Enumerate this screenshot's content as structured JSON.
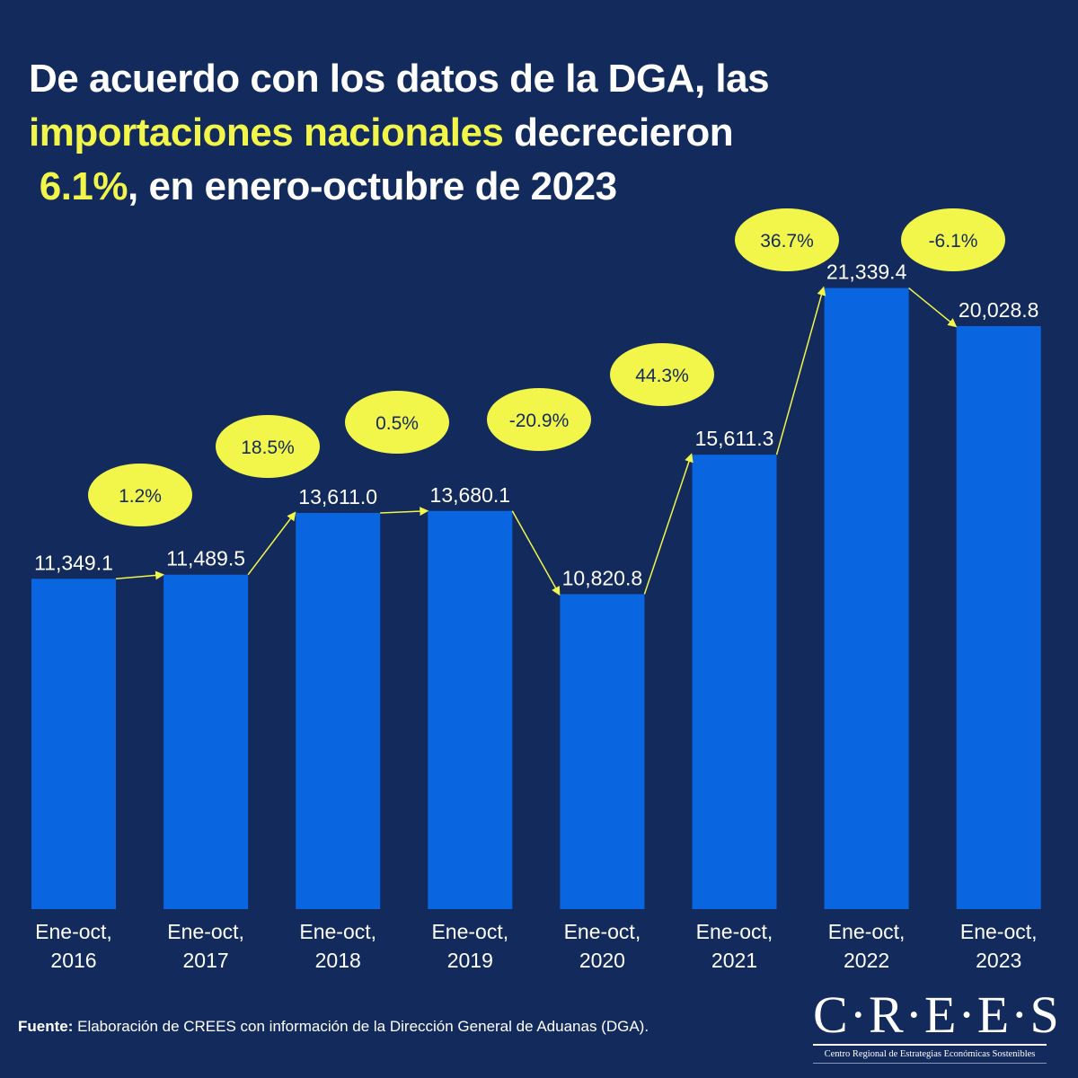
{
  "title": {
    "line1": "De acuerdo con los datos de la DGA, las",
    "line2_highlight": "importaciones nacionales",
    "line2_rest": " decrecieron",
    "line3_highlight": "6.1%",
    "line3_rest": ", en enero-octubre de 2023"
  },
  "colors": {
    "background": "#132a5c",
    "bar": "#0a66e0",
    "highlight": "#f2f54a",
    "bubble_text": "#132a5c",
    "text": "#ffffff"
  },
  "chart_data": {
    "type": "bar",
    "title": "De acuerdo con los datos de la DGA, las importaciones nacionales decrecieron 6.1%, en enero-octubre de 2023",
    "xlabel": "",
    "ylabel": "",
    "ylim": [
      0,
      22000
    ],
    "grid": false,
    "categories": [
      [
        "Ene-oct,",
        "2016"
      ],
      [
        "Ene-oct,",
        "2017"
      ],
      [
        "Ene-oct,",
        "2018"
      ],
      [
        "Ene-oct,",
        "2019"
      ],
      [
        "Ene-oct,",
        "2020"
      ],
      [
        "Ene-oct,",
        "2021"
      ],
      [
        "Ene-oct,",
        "2022"
      ],
      [
        "Ene-oct,",
        "2023"
      ]
    ],
    "values": [
      11349.1,
      11489.5,
      13611.0,
      13680.1,
      10820.8,
      15611.3,
      21339.4,
      20028.8
    ],
    "value_labels": [
      "11,349.1",
      "11,489.5",
      "13,611.0",
      "13,680.1",
      "10,820.8",
      "15,611.3",
      "21,339.4",
      "20,028.8"
    ],
    "growth_labels": [
      "1.2%",
      "18.5%",
      "0.5%",
      "-20.9%",
      "44.3%",
      "36.7%",
      "-6.1%"
    ],
    "growth_values": [
      1.2,
      18.5,
      0.5,
      -20.9,
      44.3,
      36.7,
      -6.1
    ]
  },
  "source": {
    "label": "Fuente:",
    "text": " Elaboración de CREES con información de la Dirección General de Aduanas (DGA)."
  },
  "logo": {
    "main": "C·R·E·E·S",
    "subtitle": "Centro Regional de Estrategias Económicas Sostenibles"
  }
}
